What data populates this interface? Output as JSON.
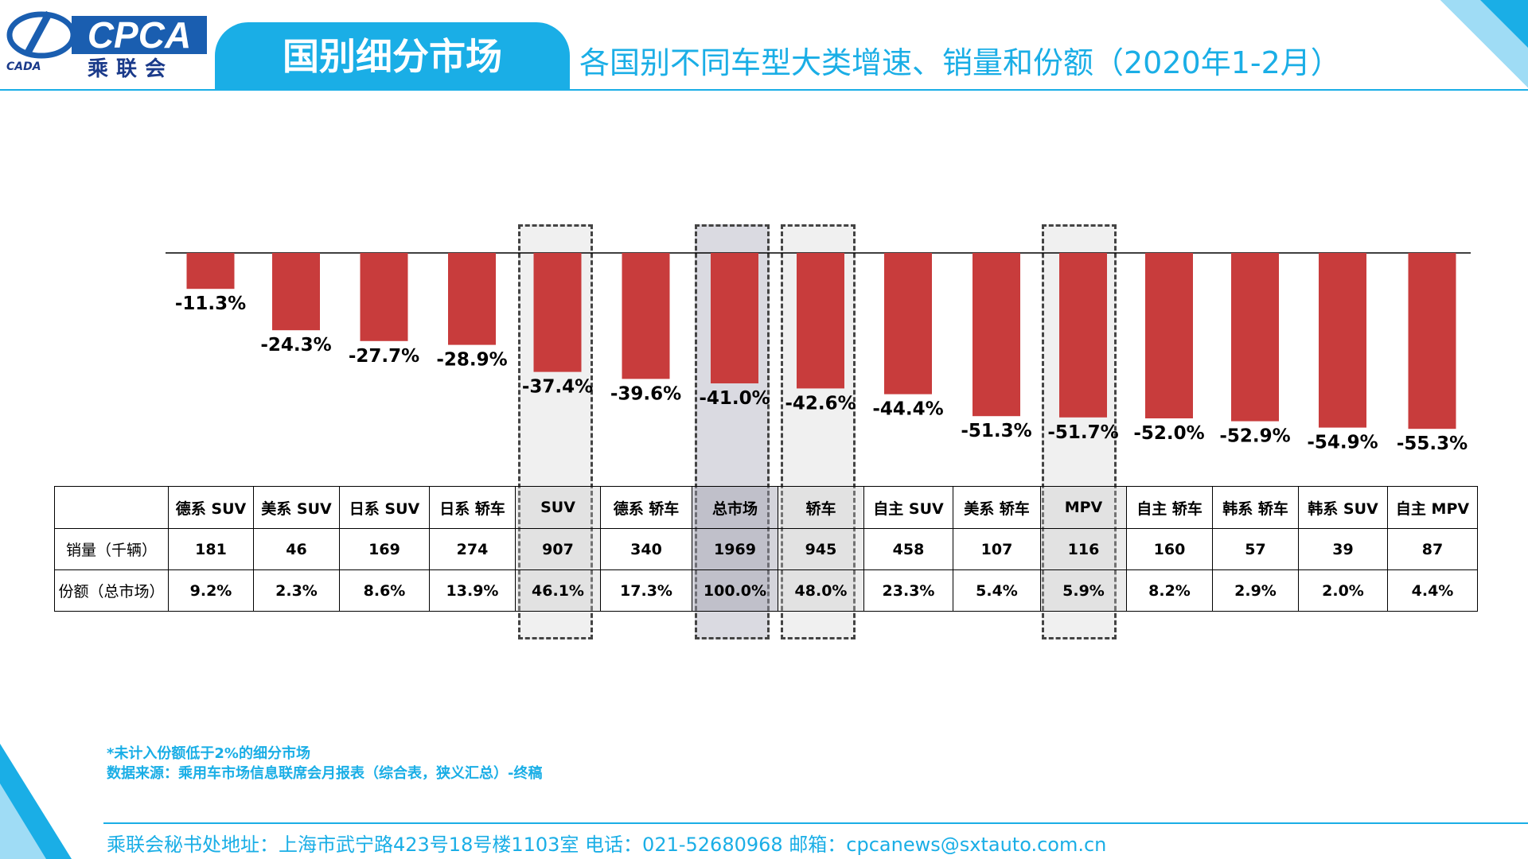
{
  "header": {
    "logo_text": "CPCA",
    "logo_cn": "乘联会",
    "logo_sub": "CADA",
    "section_title": "国别细分市场",
    "page_title": "各国别不同车型大类增速、销量和份额（2020年1-2月）"
  },
  "colors": {
    "accent": "#1aaee6",
    "bar": "#c83c3c",
    "logo_blue": "#1a5eb0"
  },
  "chart_data": {
    "type": "bar",
    "categories": [
      "德系 SUV",
      "美系 SUV",
      "日系 SUV",
      "日系 轿车",
      "SUV",
      "德系 轿车",
      "总市场",
      "轿车",
      "自主 SUV",
      "美系 轿车",
      "MPV",
      "自主 轿车",
      "韩系 轿车",
      "韩系 SUV",
      "自主 MPV"
    ],
    "values": [
      -11.3,
      -24.3,
      -27.7,
      -28.9,
      -37.4,
      -39.6,
      -41.0,
      -42.6,
      -44.4,
      -51.3,
      -51.7,
      -52.0,
      -52.9,
      -54.9,
      -55.3
    ],
    "value_labels": [
      "-11.3%",
      "-24.3%",
      "-27.7%",
      "-28.9%",
      "-37.4%",
      "-39.6%",
      "-41.0%",
      "-42.6%",
      "-44.4%",
      "-51.3%",
      "-51.7%",
      "-52.0%",
      "-52.9%",
      "-54.9%",
      "-55.3%"
    ],
    "ylim": [
      -60,
      0
    ],
    "highlighted": [
      "SUV",
      "总市场",
      "轿车",
      "MPV"
    ]
  },
  "table": {
    "row_labels": [
      "销量（千辆）",
      "份额（总市场）"
    ],
    "sales": [
      "181",
      "46",
      "169",
      "274",
      "907",
      "340",
      "1969",
      "945",
      "458",
      "107",
      "116",
      "160",
      "57",
      "39",
      "87"
    ],
    "share": [
      "9.2%",
      "2.3%",
      "8.6%",
      "13.9%",
      "46.1%",
      "17.3%",
      "100.0%",
      "48.0%",
      "23.3%",
      "5.4%",
      "5.9%",
      "8.2%",
      "2.9%",
      "2.0%",
      "4.4%"
    ]
  },
  "notes": {
    "note1": "*未计入份额低于2%的细分市场",
    "note2": "数据来源：乘用车市场信息联席会月报表（综合表，狭义汇总）-终稿"
  },
  "footer": "乘联会秘书处地址：上海市武宁路423号18号楼1103室 电话：021-52680968 邮箱：cpcanews@sxtauto.com.cn"
}
